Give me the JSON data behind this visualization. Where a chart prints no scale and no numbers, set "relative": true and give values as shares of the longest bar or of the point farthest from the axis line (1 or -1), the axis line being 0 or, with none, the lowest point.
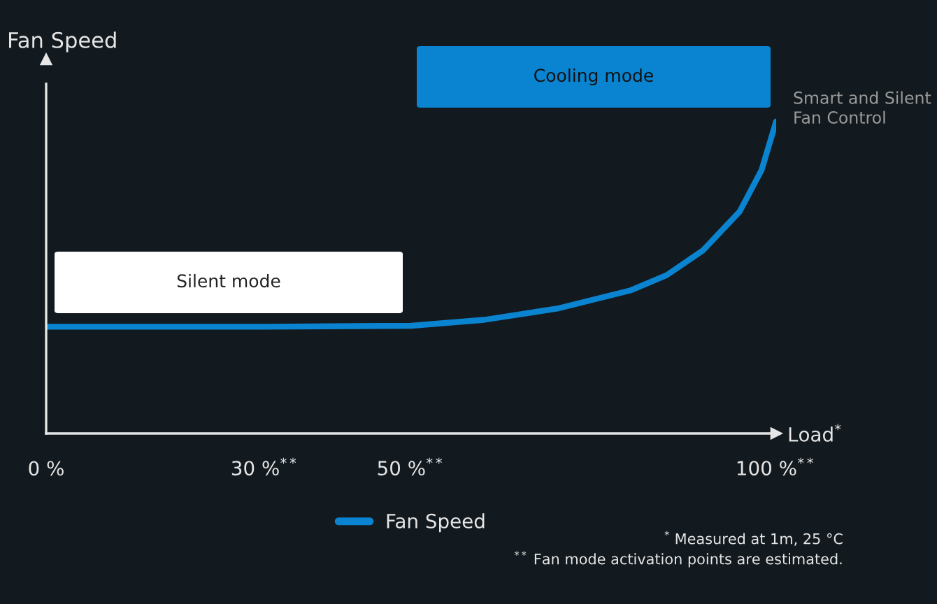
{
  "chart_data": {
    "type": "line",
    "relative": true,
    "ylabel": "Fan Speed",
    "xlabel": "Load$^{*}$",
    "x": [
      0,
      30,
      50,
      60,
      70,
      80,
      85,
      90,
      95,
      98,
      100
    ],
    "xlim": [
      0,
      100
    ],
    "xticks": [
      {
        "value": 0,
        "label": "0 %"
      },
      {
        "value": 30,
        "label": "30 %$^{**}$"
      },
      {
        "value": 50,
        "label": "50 %$^{**}$"
      },
      {
        "value": 100,
        "label": "100 %$^{**}$"
      }
    ],
    "series": [
      {
        "name": "Fan Speed",
        "color": "#0a84d0",
        "values": [
          0.342,
          0.342,
          0.345,
          0.364,
          0.4,
          0.458,
          0.507,
          0.587,
          0.711,
          0.844,
          1
        ]
      }
    ],
    "annotations": [
      "Silent mode",
      "Cooling mode",
      "Smart and Silent\nFan Control",
      "$^{*}$ Measured at 1m, 25 °C",
      "$^{**}$ Fan mode activation points are estimated."
    ],
    "legend": "bottom",
    "grid": false,
    "marker": "none",
    "line_style": "solid"
  }
}
